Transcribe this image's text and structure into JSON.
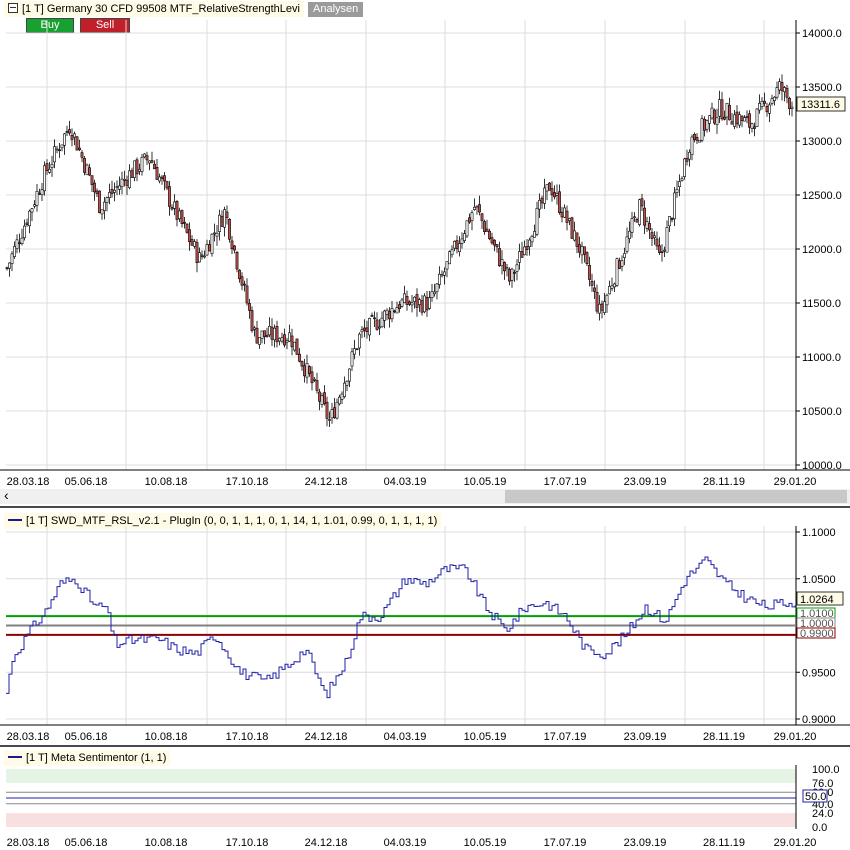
{
  "main_pane": {
    "title": "[1 T] Germany 30 CFD  99508 MTF_RelativeStrengthLevi",
    "analysen_label": "Analysen",
    "buy_label": "Buy",
    "sell_label": "Sell",
    "last_price_label": "13311.6"
  },
  "rsl_pane": {
    "title": "[1 T] SWD_MTF_RSL_v2.1 - PlugIn  (0, 0, 1, 1, 1, 0, 1, 14, 1, 1.01, 0.99, 0, 1, 1, 1, 1)",
    "current_value_label": "1.0264",
    "upper_label": "1.0100",
    "mid_label": "1.0000",
    "lower_label": "0.9900"
  },
  "sentiment_pane": {
    "title": "[1 T] Meta Sentimentor  (1, 1)",
    "current_value_label": "50.0"
  },
  "x_axis_labels": [
    "28.03.18",
    "05.06.18",
    "10.08.18",
    "17.10.18",
    "24.12.18",
    "04.03.19",
    "10.05.19",
    "17.07.19",
    "23.09.19",
    "28.11.19",
    "29.01.20"
  ],
  "scroll_left_glyph": "‹",
  "colors": {
    "bear_candle": "#c0504d",
    "bull_candle": "#ffffff",
    "rsl_line": "#1f1fa8",
    "upper_band": "#00a000",
    "lower_band": "#8b0000",
    "mid_band": "#808080",
    "buy_button": "#18a030",
    "sell_button": "#c0202a"
  },
  "chart_data": [
    {
      "type": "candlestick",
      "title": "[1 T] Germany 30 CFD",
      "y_ticks": [
        "10000.0",
        "10500.0",
        "11000.0",
        "11500.0",
        "12000.0",
        "12500.0",
        "13000.0",
        "13500.0",
        "14000.0"
      ],
      "ylim": [
        10000,
        14000
      ],
      "x_tick_labels": [
        "28.03.18",
        "05.06.18",
        "10.08.18",
        "17.10.18",
        "24.12.18",
        "04.03.19",
        "10.05.19",
        "17.07.19",
        "23.09.19",
        "28.11.19",
        "29.01.20"
      ],
      "last_value": 13311.6,
      "x": [
        "28.03.18",
        "05.06.18",
        "10.08.18",
        "17.10.18",
        "24.12.18",
        "04.03.19",
        "10.05.19",
        "17.07.19",
        "23.09.19",
        "28.11.19",
        "29.01.20"
      ],
      "close": [
        11900,
        13150,
        12600,
        12400,
        10500,
        11500,
        12300,
        12450,
        12100,
        13200,
        13300
      ]
    },
    {
      "type": "line",
      "title": "[1 T] SWD_MTF_RSL_v2.1 - PlugIn",
      "y_ticks": [
        "0.9000",
        "0.9500",
        "1.0000",
        "1.0500",
        "1.1000"
      ],
      "ylim": [
        0.9,
        1.1
      ],
      "reference_lines": [
        1.01,
        1.0,
        0.99
      ],
      "last_value": 1.0264,
      "x": [
        "28.03.18",
        "05.06.18",
        "10.08.18",
        "17.10.18",
        "24.12.18",
        "04.03.19",
        "10.05.19",
        "17.07.19",
        "23.09.19",
        "28.11.19",
        "29.01.20"
      ],
      "values": [
        0.925,
        1.05,
        0.99,
        0.97,
        0.93,
        1.05,
        1.06,
        1.01,
        0.97,
        1.07,
        1.026
      ]
    },
    {
      "type": "line",
      "title": "[1 T] Meta Sentimentor",
      "y_ticks": [
        "0.0",
        "24.0",
        "40.0",
        "50.0",
        "60.0",
        "76.0",
        "100.0"
      ],
      "ylim": [
        0,
        100
      ],
      "last_value": 50.0,
      "values": [
        50,
        50
      ]
    }
  ]
}
